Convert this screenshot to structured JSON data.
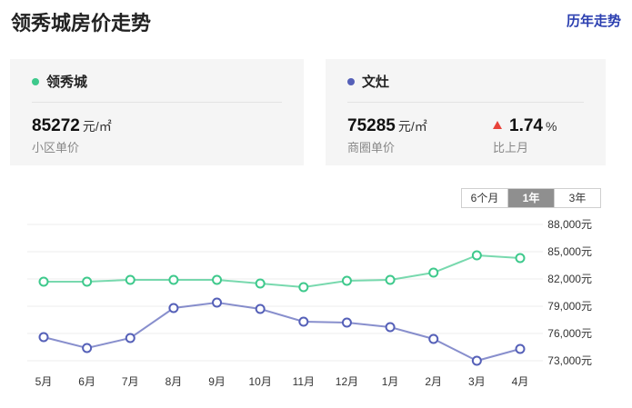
{
  "header": {
    "title": "领秀城房价走势",
    "history_link": "历年走势"
  },
  "cards": [
    {
      "name": "领秀城",
      "dot_color": "#3ec98c",
      "price": "85272",
      "unit": "元/㎡",
      "desc": "小区单价"
    },
    {
      "name": "文灶",
      "dot_color": "#5560b8",
      "price": "75285",
      "unit": "元/㎡",
      "desc": "商圈单价",
      "change_value": "1.74",
      "change_unit": "%",
      "change_desc": "比上月",
      "change_direction": "up",
      "change_color": "#e8433a"
    }
  ],
  "range_tabs": {
    "items": [
      "6个月",
      "1年",
      "3年"
    ],
    "active": "1年"
  },
  "chart_data": {
    "type": "line",
    "x": [
      "5月",
      "6月",
      "7月",
      "8月",
      "9月",
      "10月",
      "11月",
      "12月",
      "1月",
      "2月",
      "3月",
      "4月"
    ],
    "series": [
      {
        "color": "#3ec98c",
        "values": [
          81700,
          81700,
          81900,
          81900,
          81900,
          81500,
          81100,
          81800,
          81900,
          82700,
          84600,
          84300
        ]
      },
      {
        "color": "#5560b8",
        "values": [
          75600,
          74400,
          75500,
          78800,
          79400,
          78700,
          77300,
          77200,
          76700,
          75400,
          73000,
          74300
        ]
      }
    ],
    "y_ticks": [
      "88,000元",
      "85,000元",
      "82,000元",
      "79,000元",
      "76,000元",
      "73,000元"
    ],
    "ylim": [
      73000,
      88000
    ],
    "grid": true,
    "legend": "none"
  }
}
